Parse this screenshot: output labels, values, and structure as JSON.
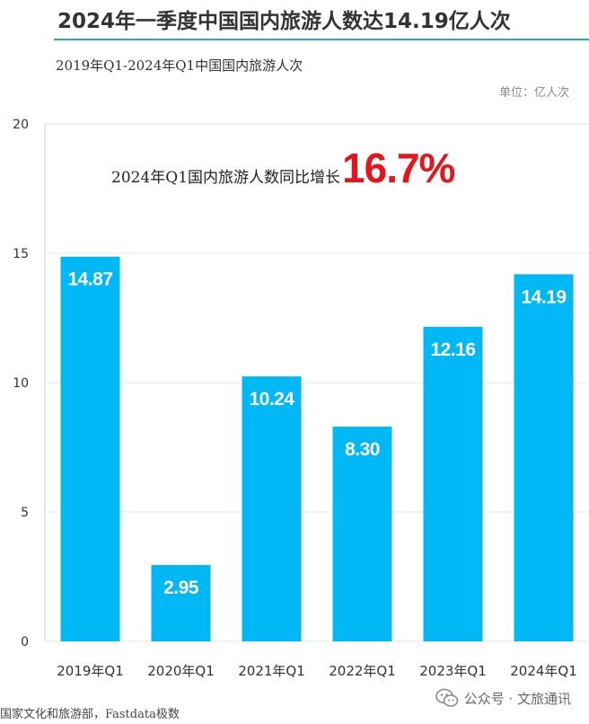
{
  "header": {
    "title": "2024年一季度中国国内旅游人数达14.19亿人次",
    "subtitle": "2019年Q1-2024年Q1中国国内旅游人次",
    "unit": "单位：亿人次"
  },
  "annotation": {
    "text": "2024年Q1国内旅游人数同比增长",
    "value": "16.7%"
  },
  "footer": {
    "source": "国家文化和旅游部，Fastdata极数",
    "watermark": "公众号 · 文旅通讯"
  },
  "colors": {
    "bar": "#00b8f5",
    "accent": "#e8141b",
    "rule": "#2aa7e1"
  },
  "chart_data": {
    "type": "bar",
    "categories": [
      "2019年Q1",
      "2020年Q1",
      "2021年Q1",
      "2022年Q1",
      "2023年Q1",
      "2024年Q1"
    ],
    "values": [
      14.87,
      2.95,
      10.24,
      8.3,
      12.16,
      14.19
    ],
    "value_labels": [
      "14.87",
      "2.95",
      "10.24",
      "8.30",
      "12.16",
      "14.19"
    ],
    "yticks": [
      "0",
      "5",
      "10",
      "15",
      "20"
    ],
    "ylim": [
      0,
      20
    ],
    "grid": true,
    "legend": "none"
  }
}
